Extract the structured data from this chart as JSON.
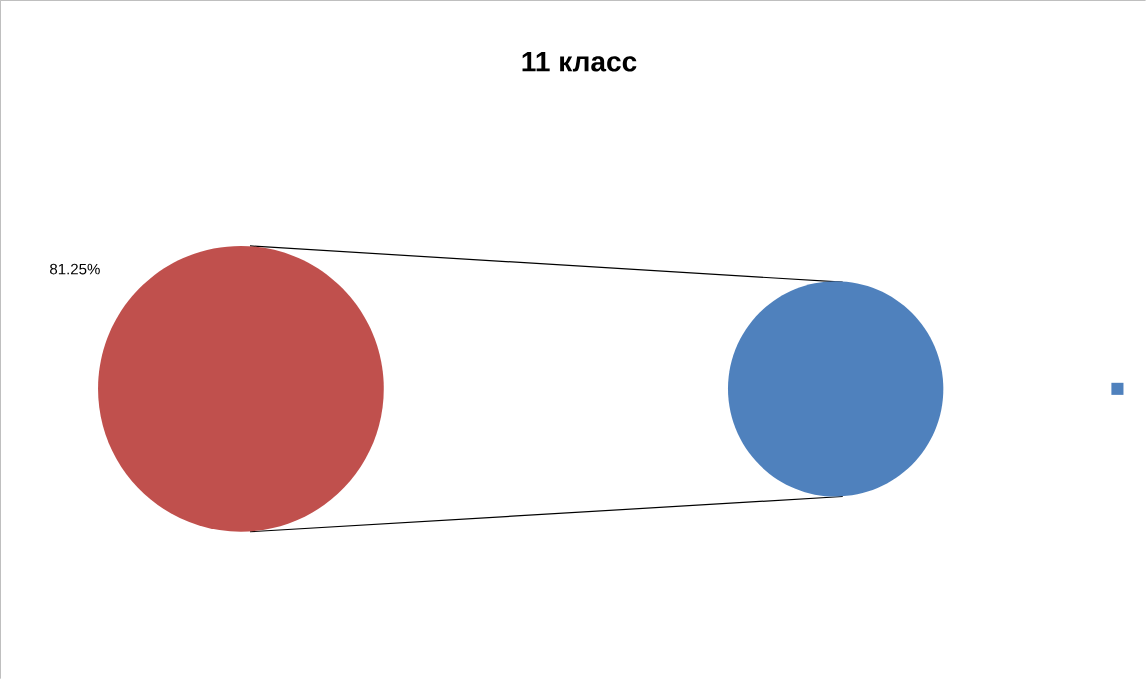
{
  "chart_data": {
    "type": "other",
    "title": "11 класс",
    "categories": [
      null,
      null
    ],
    "values": [
      81.25,
      null
    ],
    "value_labels": [
      "81.25%",
      null
    ],
    "colors": [
      "#c0504d",
      "#4f81bd"
    ]
  }
}
